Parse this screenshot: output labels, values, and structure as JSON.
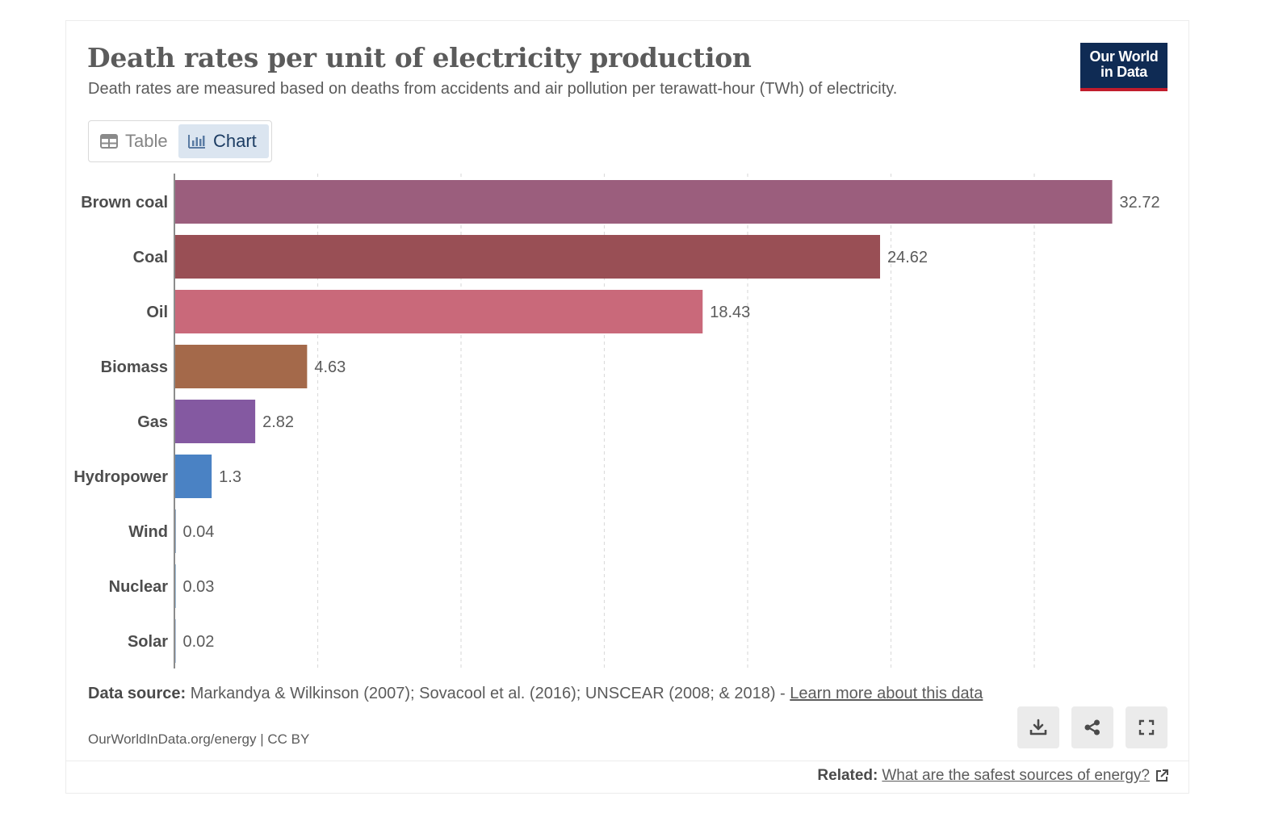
{
  "header": {
    "title": "Death rates per unit of electricity production",
    "subtitle": "Death rates are measured based on deaths from accidents and air pollution per terawatt-hour (TWh) of electricity.",
    "logo_line1": "Our World",
    "logo_line2": "in Data"
  },
  "tabs": {
    "table_label": "Table",
    "chart_label": "Chart",
    "active": "Chart"
  },
  "chart_data": {
    "type": "bar",
    "orientation": "horizontal",
    "categories": [
      "Brown coal",
      "Coal",
      "Oil",
      "Biomass",
      "Gas",
      "Hydropower",
      "Wind",
      "Nuclear",
      "Solar"
    ],
    "values": [
      32.72,
      24.62,
      18.43,
      4.63,
      2.82,
      1.3,
      0.04,
      0.03,
      0.02
    ],
    "value_labels": [
      "32.72",
      "24.62",
      "18.43",
      "4.63",
      "2.82",
      "1.3",
      "0.04",
      "0.03",
      "0.02"
    ],
    "colors": [
      "#9b5e7d",
      "#994f55",
      "#c9697a",
      "#a4694a",
      "#8459a1",
      "#4a82c4",
      "#2f5e8e",
      "#3f79ae",
      "#6a8db8"
    ],
    "xlim": [
      0,
      35
    ],
    "grid_step": 5,
    "grid": true
  },
  "footer": {
    "source_label": "Data source:",
    "source_text": "Markandya & Wilkinson (2007); Sovacool et al. (2016); UNSCEAR (2008; & 2018) -",
    "learn_more": "Learn more about this data",
    "url": "OurWorldInData.org/energy | CC BY",
    "related_label": "Related:",
    "related_link": "What are the safest sources of energy?"
  },
  "icons": {
    "download": "download-icon",
    "share": "share-icon",
    "fullscreen": "fullscreen-icon",
    "external": "external-link-icon"
  }
}
